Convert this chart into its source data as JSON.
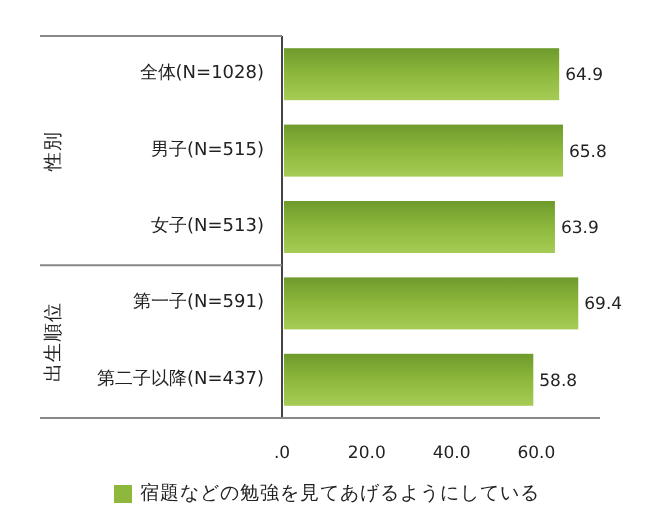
{
  "chart_data": {
    "type": "bar",
    "orientation": "horizontal",
    "categories": [
      "全体(N=1028)",
      "男子(N=515)",
      "女子(N=513)",
      "第一子(N=591)",
      "第二子以降(N=437)"
    ],
    "series": [
      {
        "name": "宿題などの勉強を見てあげるようにしている",
        "color": "#8db83c",
        "values": [
          64.9,
          65.8,
          63.9,
          69.4,
          58.8
        ]
      }
    ],
    "xlim": [
      0,
      75
    ],
    "xticks": [
      {
        "value": 0,
        "label": ".0"
      },
      {
        "value": 20,
        "label": "20.0"
      },
      {
        "value": 40,
        "label": "40.0"
      },
      {
        "value": 60,
        "label": "60.0"
      }
    ],
    "data_labels": true,
    "legend": "bottom",
    "annotations": [
      "性別",
      "出生順位"
    ]
  }
}
